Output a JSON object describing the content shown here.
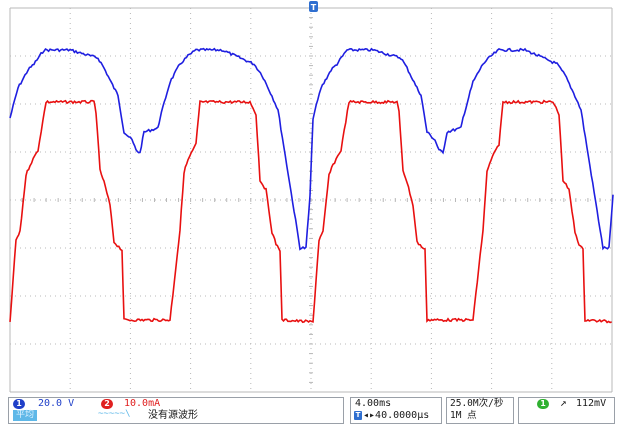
{
  "scope": {
    "trigger_marker": {
      "label": "T",
      "color": "#2f6fd0"
    },
    "trace_colors": {
      "ch1": "#1f1fe0",
      "ch2": "#e81010"
    },
    "grid_color": "#b8b8b8"
  },
  "channels": [
    {
      "number": "1",
      "scale": "20.0 V",
      "color": "#1f3fc8"
    },
    {
      "number": "2",
      "scale": "10.0mA",
      "color": "#e02020"
    }
  ],
  "row2_left": {
    "label": "平均",
    "symbol": "~~~~~\\",
    "message": "没有源波形"
  },
  "timebase": {
    "scale": "4.00ms",
    "trigger_icon": "T",
    "position": "40.0000μs"
  },
  "acquisition": {
    "sample_rate": "25.0M次/秒",
    "record_length": "1M 点"
  },
  "trigger": {
    "channel": "1",
    "slope_icon": "rising-edge-icon",
    "level": "112mV",
    "color": "#2fb030"
  }
}
